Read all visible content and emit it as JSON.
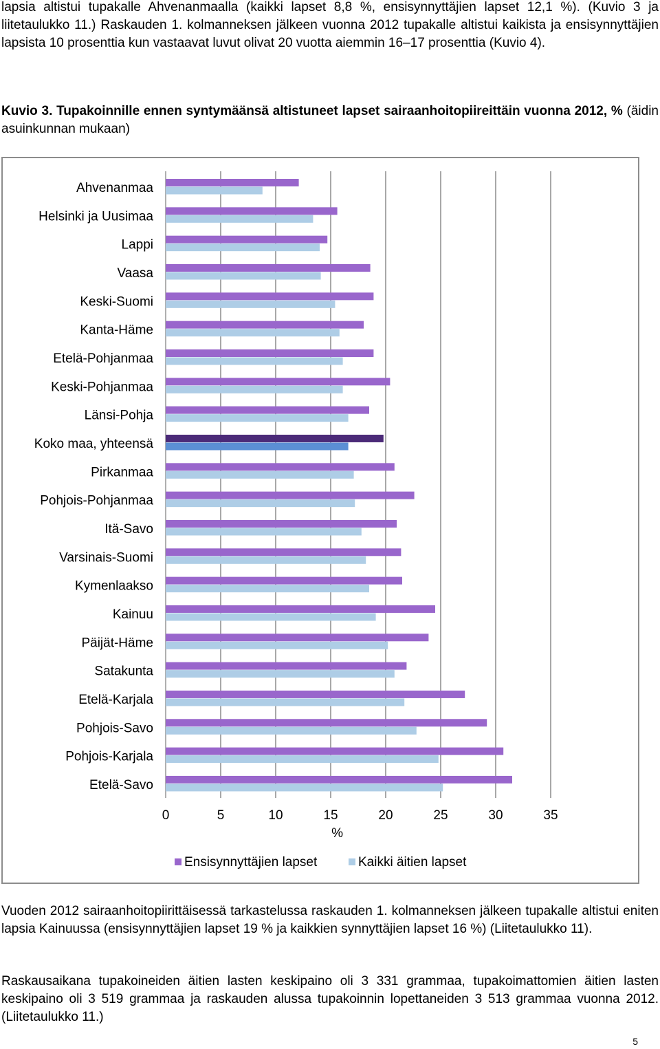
{
  "intro_text": "lapsia altistui tupakalle Ahvenanmaalla (kaikki lapset 8,8 %, ensisynnyttäjien lapset 12,1 %). (Kuvio 3 ja liitetaulukko 11.) Raskauden 1. kolmanneksen jälkeen vuonna 2012 tupakalle altistui kaikista ja ensisynnyttäjien lapsista 10 prosenttia kun vastaavat luvut olivat 20 vuotta aiemmin 16–17 prosenttia (Kuvio 4).",
  "caption": {
    "label": "Kuvio 3. Tupakoinnille ennen syntymäänsä altistuneet lapset sairaanhoitopiireittäin vuonna 2012, %",
    "note": "(äidin asuinkunnan mukaan)"
  },
  "chart_data": {
    "type": "bar",
    "orientation": "horizontal",
    "categories": [
      "Ahvenanmaa",
      "Helsinki ja Uusimaa",
      "Lappi",
      "Vaasa",
      "Keski-Suomi",
      "Kanta-Häme",
      "Etelä-Pohjanmaa",
      "Keski-Pohjanmaa",
      "Länsi-Pohja",
      "Koko maa, yhteensä",
      "Pirkanmaa",
      "Pohjois-Pohjanmaa",
      "Itä-Savo",
      "Varsinais-Suomi",
      "Kymenlaakso",
      "Kainuu",
      "Päijät-Häme",
      "Satakunta",
      "Etelä-Karjala",
      "Pohjois-Savo",
      "Pohjois-Karjala",
      "Etelä-Savo"
    ],
    "series": [
      {
        "name": "Ensisynnyttäjien lapset",
        "color": "#9966cc",
        "highlight_color": "#4b2a78",
        "values": [
          12.1,
          15.6,
          14.7,
          18.6,
          18.9,
          18.0,
          18.9,
          20.4,
          18.5,
          19.8,
          20.8,
          22.6,
          21.0,
          21.4,
          21.5,
          24.5,
          23.9,
          21.9,
          27.2,
          29.2,
          30.7,
          31.5
        ]
      },
      {
        "name": "Kaikki äitien lapset",
        "color": "#aecde6",
        "highlight_color": "#5b8fd4",
        "values": [
          8.8,
          13.4,
          14.0,
          14.1,
          15.4,
          15.8,
          16.1,
          16.1,
          16.6,
          16.6,
          17.1,
          17.2,
          17.8,
          18.2,
          18.5,
          19.1,
          20.2,
          20.8,
          21.7,
          22.8,
          24.8,
          25.2
        ]
      }
    ],
    "highlight_category": "Koko maa, yhteensä",
    "xticks": [
      "0",
      "5",
      "10",
      "15",
      "20",
      "25",
      "30",
      "35"
    ],
    "xlim": [
      0,
      35
    ],
    "xlabel": "%",
    "legend_position": "bottom",
    "grid": true
  },
  "para_a": "Vuoden 2012 sairaanhoitopiirittäisessä tarkastelussa raskauden 1. kolmanneksen jälkeen tupakalle altistui eniten lapsia Kainuussa (ensisynnyttäjien lapset 19 % ja kaikkien synnyttäjien lapset 16 %) (Liitetaulukko 11).",
  "para_b": "Raskausaikana tupakoineiden äitien lasten keskipaino oli 3 331 grammaa, tupakoimattomien äitien lasten keskipaino oli 3 519 grammaa ja raskauden alussa tupakoinnin lopettaneiden 3 513 grammaa vuonna 2012. (Liitetaulukko 11.)",
  "page_number": "5"
}
